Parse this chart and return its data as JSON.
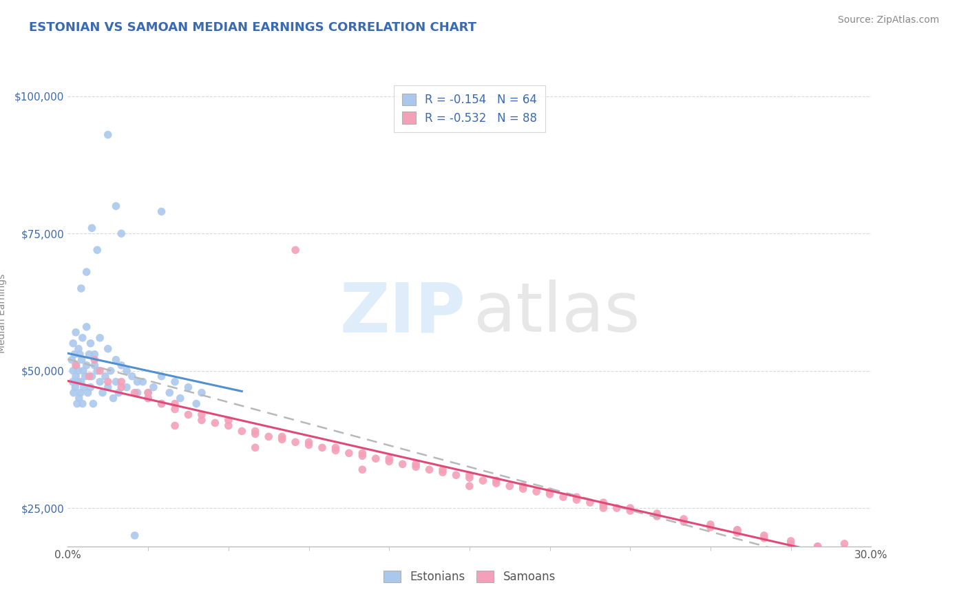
{
  "title": "ESTONIAN VS SAMOAN MEDIAN EARNINGS CORRELATION CHART",
  "source": "Source: ZipAtlas.com",
  "ylabel": "Median Earnings",
  "y_ticks": [
    25000,
    50000,
    75000,
    100000
  ],
  "y_tick_labels": [
    "$25,000",
    "$50,000",
    "$75,000",
    "$100,000"
  ],
  "xmin": 0.0,
  "xmax": 30.0,
  "ymin": 18000,
  "ymax": 103000,
  "estonian_color": "#aac8ed",
  "samoan_color": "#f4a0b8",
  "estonian_line_color": "#5090d0",
  "samoan_line_color": "#e04878",
  "dashed_line_color": "#b8b8b8",
  "background_color": "#ffffff",
  "grid_color": "#d8d8d8",
  "title_color": "#3a6ab0",
  "axis_color": "#888888",
  "title_fontsize": 13,
  "axis_label_fontsize": 10,
  "tick_fontsize": 11,
  "source_fontsize": 10,
  "legend_fontsize": 12
}
